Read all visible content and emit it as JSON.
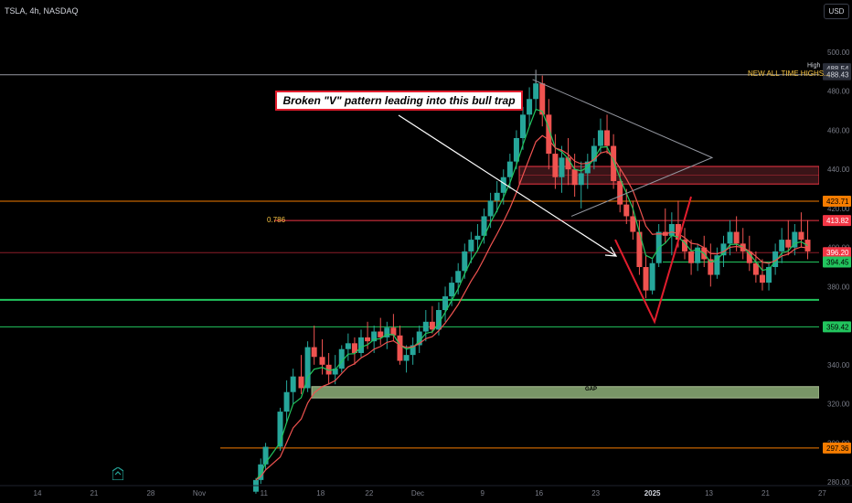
{
  "header": {
    "symbol": "TSLA, 4h, NASDAQ"
  },
  "currency": "USD",
  "ticks_y": [
    {
      "v": 500,
      "t": "500.00"
    },
    {
      "v": 480,
      "t": "480.00"
    },
    {
      "v": 460,
      "t": "460.00"
    },
    {
      "v": 440,
      "t": "440.00"
    },
    {
      "v": 420,
      "t": "420.00"
    },
    {
      "v": 400,
      "t": "400.00"
    },
    {
      "v": 380,
      "t": "380.00"
    },
    {
      "v": 340,
      "t": "340.00"
    },
    {
      "v": 320,
      "t": "320.00"
    },
    {
      "v": 300,
      "t": "300.00"
    },
    {
      "v": 280,
      "t": "280.00"
    }
  ],
  "ticks_x": [
    {
      "x": 0,
      "t": "14"
    },
    {
      "x": 7,
      "t": "21"
    },
    {
      "x": 14,
      "t": "28"
    },
    {
      "x": 20,
      "t": "Nov"
    },
    {
      "x": 28,
      "t": "11"
    },
    {
      "x": 35,
      "t": "18"
    },
    {
      "x": 41,
      "t": "22"
    },
    {
      "x": 47,
      "t": "Dec"
    },
    {
      "x": 55,
      "t": "9"
    },
    {
      "x": 62,
      "t": "16"
    },
    {
      "x": 69,
      "t": "23"
    },
    {
      "x": 76,
      "t": "2025"
    },
    {
      "x": 83,
      "t": "13"
    },
    {
      "x": 90,
      "t": "21"
    },
    {
      "x": 97,
      "t": "27"
    }
  ],
  "price_labels": [
    {
      "key": "high",
      "label": "High",
      "text": "488.54",
      "v": 491.5,
      "bg": "#2a2e39",
      "fg": "#d1d4dc"
    },
    {
      "key": "ath",
      "text": "488.43",
      "v": 488.43,
      "bg": "#2a2e39",
      "fg": "#d1d4dc"
    },
    {
      "key": "l423",
      "text": "423.71",
      "v": 423.71,
      "bg": "#f57c00",
      "fg": "#000000"
    },
    {
      "key": "l413",
      "text": "413.82",
      "v": 413.82,
      "bg": "#f23645",
      "fg": "#ffffff"
    },
    {
      "key": "l396",
      "text": "396.20",
      "v": 397.4,
      "bg": "#f23645",
      "fg": "#ffffff"
    },
    {
      "key": "l394",
      "text": "394.45",
      "v": 392.6,
      "bg": "#22c55e",
      "fg": "#000000"
    },
    {
      "key": "l359",
      "text": "359.42",
      "v": 359.42,
      "bg": "#22c55e",
      "fg": "#000000"
    },
    {
      "key": "l297",
      "text": "297.36",
      "v": 297.36,
      "bg": "#f57c00",
      "fg": "#000000"
    }
  ],
  "annotations": {
    "callout": "Broken \"V\" pattern leading into this bull trap",
    "ath_label": "NEW ALL TIME HIGHS...",
    "fib_label": "0.786",
    "gap_label": "GAP"
  },
  "colors": {
    "up": "#26a69a",
    "down": "#ef5350",
    "ema_fast": "#22c55e",
    "ema_slow": "#ef5350",
    "accent": "#f23645",
    "orange": "#f57c00",
    "gold": "#f5c242"
  },
  "chart_data": {
    "type": "candlestick",
    "title": "TSLA, 4h, NASDAQ",
    "ylim": [
      275,
      505
    ],
    "candles": [
      [
        27,
        275,
        282,
        274,
        281
      ],
      [
        27.6,
        281,
        292,
        279,
        289
      ],
      [
        28.2,
        289,
        300,
        286,
        298
      ],
      [
        30,
        298,
        318,
        296,
        316
      ],
      [
        30.8,
        316,
        332,
        310,
        326
      ],
      [
        31.6,
        326,
        338,
        320,
        334
      ],
      [
        32.6,
        334,
        345,
        325,
        328
      ],
      [
        33.4,
        328,
        352,
        326,
        349
      ],
      [
        34.2,
        349,
        360,
        340,
        344
      ],
      [
        35.2,
        344,
        353,
        335,
        340
      ],
      [
        36,
        340,
        346,
        330,
        335
      ],
      [
        36.8,
        335,
        345,
        330,
        338
      ],
      [
        37.6,
        338,
        350,
        336,
        348
      ],
      [
        38.4,
        348,
        356,
        342,
        351
      ],
      [
        39.2,
        351,
        354,
        340,
        346
      ],
      [
        40,
        346,
        358,
        344,
        354
      ],
      [
        40.8,
        354,
        362,
        348,
        352
      ],
      [
        41.6,
        352,
        360,
        346,
        357
      ],
      [
        42.4,
        357,
        364,
        350,
        354
      ],
      [
        43.2,
        354,
        362,
        348,
        359
      ],
      [
        44,
        359,
        366,
        352,
        355
      ],
      [
        44.8,
        355,
        360,
        340,
        342
      ],
      [
        45.6,
        342,
        350,
        336,
        345
      ],
      [
        46.4,
        345,
        354,
        340,
        350
      ],
      [
        47.2,
        350,
        360,
        346,
        357
      ],
      [
        48,
        357,
        368,
        352,
        362
      ],
      [
        48.8,
        362,
        370,
        356,
        358
      ],
      [
        49.6,
        358,
        372,
        355,
        368
      ],
      [
        50.4,
        368,
        380,
        362,
        375
      ],
      [
        51.2,
        375,
        385,
        370,
        382
      ],
      [
        52,
        382,
        392,
        376,
        388
      ],
      [
        52.8,
        388,
        402,
        384,
        398
      ],
      [
        53.6,
        398,
        408,
        392,
        404
      ],
      [
        54.4,
        404,
        412,
        398,
        406
      ],
      [
        55.2,
        406,
        420,
        402,
        416
      ],
      [
        56,
        416,
        428,
        410,
        424
      ],
      [
        56.8,
        424,
        434,
        418,
        428
      ],
      [
        57.6,
        428,
        440,
        422,
        436
      ],
      [
        58.4,
        436,
        448,
        430,
        444
      ],
      [
        59.2,
        444,
        460,
        440,
        456
      ],
      [
        60,
        456,
        472,
        450,
        468
      ],
      [
        60.8,
        468,
        482,
        462,
        476
      ],
      [
        61.6,
        476,
        488,
        470,
        484
      ],
      [
        62.4,
        484,
        488,
        462,
        468
      ],
      [
        63.2,
        468,
        476,
        440,
        448
      ],
      [
        64,
        448,
        458,
        430,
        436
      ],
      [
        64.8,
        436,
        452,
        428,
        446
      ],
      [
        65.6,
        446,
        456,
        432,
        440
      ],
      [
        66.4,
        440,
        448,
        426,
        432
      ],
      [
        67.2,
        432,
        444,
        420,
        438
      ],
      [
        68,
        438,
        448,
        430,
        444
      ],
      [
        68.8,
        444,
        456,
        440,
        452
      ],
      [
        69.6,
        452,
        466,
        448,
        460
      ],
      [
        70.4,
        460,
        468,
        448,
        452
      ],
      [
        71.2,
        452,
        458,
        430,
        434
      ],
      [
        72,
        434,
        440,
        418,
        422
      ],
      [
        72.8,
        422,
        430,
        412,
        416
      ],
      [
        73.6,
        416,
        424,
        404,
        408
      ],
      [
        74.4,
        408,
        414,
        386,
        390
      ],
      [
        75.2,
        390,
        396,
        374,
        378
      ],
      [
        76,
        378,
        394,
        376,
        392
      ],
      [
        76.8,
        392,
        412,
        390,
        408
      ],
      [
        77.6,
        408,
        420,
        402,
        406
      ],
      [
        78.4,
        406,
        418,
        396,
        412
      ],
      [
        79.2,
        412,
        424,
        400,
        404
      ],
      [
        80,
        404,
        410,
        394,
        398
      ],
      [
        80.8,
        398,
        404,
        386,
        392
      ],
      [
        81.6,
        392,
        402,
        388,
        400
      ],
      [
        82.4,
        400,
        406,
        390,
        394
      ],
      [
        83.2,
        394,
        402,
        380,
        386
      ],
      [
        84,
        386,
        400,
        384,
        396
      ],
      [
        84.8,
        396,
        406,
        390,
        402
      ],
      [
        85.6,
        402,
        414,
        396,
        408
      ],
      [
        86.4,
        408,
        416,
        398,
        402
      ],
      [
        87.2,
        402,
        410,
        394,
        398
      ],
      [
        88,
        398,
        406,
        388,
        392
      ],
      [
        88.8,
        392,
        398,
        382,
        386
      ],
      [
        89.6,
        386,
        394,
        378,
        382
      ],
      [
        90.4,
        382,
        392,
        378,
        390
      ],
      [
        91.2,
        390,
        402,
        386,
        398
      ],
      [
        92,
        398,
        410,
        392,
        404
      ],
      [
        92.8,
        404,
        414,
        396,
        400
      ],
      [
        93.6,
        400,
        412,
        396,
        408
      ],
      [
        94.4,
        408,
        418,
        400,
        404
      ],
      [
        95.2,
        404,
        414,
        394,
        398
      ]
    ]
  }
}
